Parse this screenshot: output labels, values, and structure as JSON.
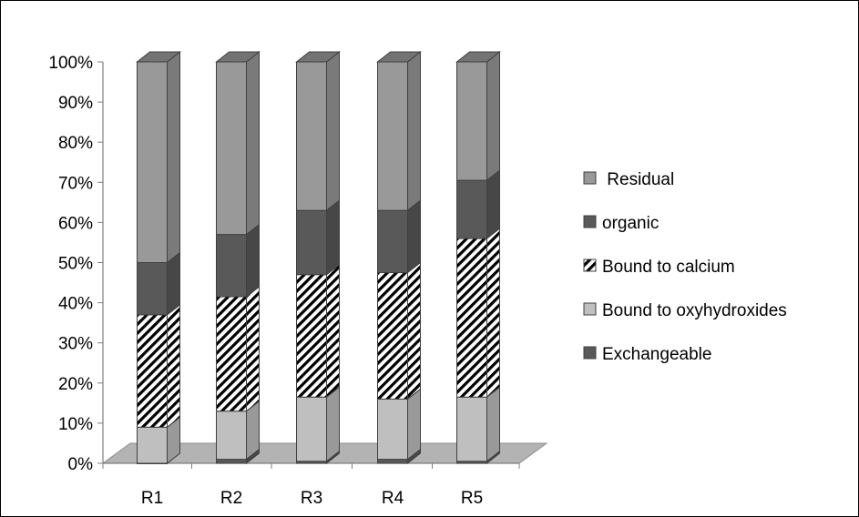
{
  "chart_data": {
    "type": "bar",
    "stacked": true,
    "percent": true,
    "three_d": true,
    "categories": [
      "R1",
      "R2",
      "R3",
      "R4",
      "R5"
    ],
    "ylim": [
      0,
      100
    ],
    "yticks": [
      "0%",
      "10%",
      "20%",
      "30%",
      "40%",
      "50%",
      "60%",
      "70%",
      "80%",
      "90%",
      "100%"
    ],
    "grid": false,
    "legend_position": "right",
    "series": [
      {
        "name": "Exchangeable",
        "values": [
          0,
          1,
          0.5,
          1,
          0.5
        ],
        "color": "#595959",
        "pattern": "solid"
      },
      {
        "name": "Bound to oxyhydroxides",
        "values": [
          9,
          12,
          16,
          15,
          16
        ],
        "color": "#bfbfbf",
        "pattern": "solid"
      },
      {
        "name": "Bound to calcium",
        "values": [
          28,
          28.5,
          30.5,
          31.5,
          39.5
        ],
        "color": "#ffffff",
        "pattern": "diagonal-hatch"
      },
      {
        "name": "organic",
        "values": [
          13,
          15.5,
          16,
          15.5,
          14.5
        ],
        "color": "#595959",
        "pattern": "solid"
      },
      {
        "name": "Residual",
        "values": [
          50,
          43,
          37,
          37,
          29.5
        ],
        "color": "#999999",
        "pattern": "solid"
      }
    ],
    "legend_order": [
      " Residual",
      "organic",
      "Bound to calcium",
      "Bound to oxyhydroxides",
      "Exchangeable"
    ]
  }
}
